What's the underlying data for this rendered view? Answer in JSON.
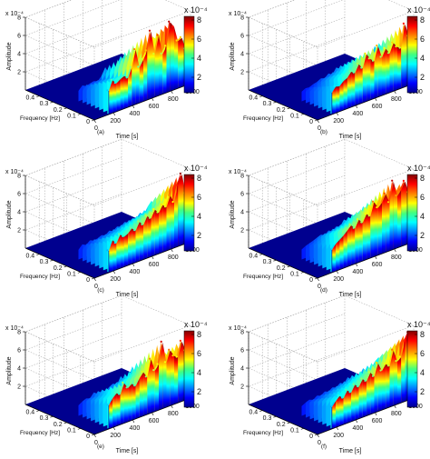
{
  "chart_data": [
    {
      "type": "surface",
      "panel_label": "(a)",
      "xlabel": "Time [s]",
      "ylabel": "Frequency [Hz]",
      "zlabel": "Amplitude",
      "z_exponent": "x 10⁻⁴",
      "colorbar": {
        "exponent": "x 10⁻⁴",
        "ticks": [
          "8",
          "6",
          "4",
          "2"
        ],
        "range": [
          0,
          8
        ]
      },
      "x_ticks": [
        "0",
        "200",
        "400",
        "600",
        "800",
        "1000"
      ],
      "x_range": [
        0,
        1000
      ],
      "y_ticks": [
        "0",
        "0.1",
        "0.2",
        "0.3",
        "0.4"
      ],
      "y_range": [
        0,
        0.5
      ],
      "z_ticks": [
        "8",
        "6",
        "4",
        "2"
      ],
      "z_range": [
        0,
        8
      ],
      "onset_time": 150,
      "profile_time": [
        150,
        190,
        230,
        270,
        310,
        350,
        390,
        430,
        470,
        510,
        550,
        590,
        630,
        670,
        710,
        750,
        790,
        830,
        870,
        910,
        950,
        990
      ],
      "profile_amplitude": [
        2.6,
        3.6,
        3.1,
        3.4,
        3.6,
        3.2,
        4.2,
        6.0,
        3.9,
        4.6,
        5.4,
        7.4,
        4.7,
        6.6,
        4.4,
        5.1,
        7.6,
        6.9,
        5.2,
        5.4,
        4.0,
        5.1
      ]
    },
    {
      "type": "surface",
      "panel_label": "(b)",
      "xlabel": "Time [s]",
      "ylabel": "Frequency [Hz]",
      "zlabel": "Amplitude",
      "z_exponent": "x 10⁻⁴",
      "colorbar": {
        "exponent": "x 10⁻⁴",
        "ticks": [
          "8",
          "6",
          "4",
          "2"
        ],
        "range": [
          0,
          8
        ]
      },
      "x_ticks": [
        "0",
        "200",
        "400",
        "600",
        "800",
        "1000"
      ],
      "x_range": [
        0,
        1000
      ],
      "y_ticks": [
        "0",
        "0.1",
        "0.2",
        "0.3",
        "0.4"
      ],
      "y_range": [
        0,
        0.5
      ],
      "z_ticks": [
        "8",
        "6",
        "4",
        "2"
      ],
      "z_range": [
        0,
        8
      ],
      "onset_time": 150,
      "profile_time": [
        150,
        190,
        230,
        270,
        310,
        350,
        390,
        430,
        470,
        510,
        550,
        590,
        630,
        670,
        710,
        750,
        790,
        830,
        870,
        910,
        950,
        990
      ],
      "profile_amplitude": [
        2.4,
        2.9,
        2.8,
        3.2,
        3.4,
        3.9,
        3.6,
        4.4,
        3.8,
        5.2,
        4.5,
        4.1,
        5.6,
        4.2,
        5.0,
        4.3,
        5.3,
        4.7,
        4.4,
        6.9,
        5.4,
        4.8
      ]
    },
    {
      "type": "surface",
      "panel_label": "(c)",
      "xlabel": "Time [s]",
      "ylabel": "Frequency [Hz]",
      "zlabel": "Amplitude",
      "z_exponent": "x 10⁻⁴",
      "colorbar": {
        "exponent": "x 10⁻⁴",
        "ticks": [
          "8",
          "6",
          "4",
          "2"
        ],
        "range": [
          0,
          8
        ]
      },
      "x_ticks": [
        "0",
        "200",
        "400",
        "600",
        "800",
        "1000"
      ],
      "x_range": [
        0,
        1000
      ],
      "y_ticks": [
        "0",
        "0.1",
        "0.2",
        "0.3",
        "0.4"
      ],
      "y_range": [
        0,
        0.5
      ],
      "z_ticks": [
        "8",
        "6",
        "4",
        "2"
      ],
      "z_range": [
        0,
        8
      ],
      "onset_time": 150,
      "profile_time": [
        150,
        190,
        230,
        270,
        310,
        350,
        390,
        430,
        470,
        510,
        550,
        590,
        630,
        670,
        710,
        750,
        790,
        830,
        870,
        910,
        950,
        990
      ],
      "profile_amplitude": [
        2.4,
        3.4,
        2.9,
        3.7,
        3.3,
        3.5,
        3.9,
        3.5,
        4.3,
        3.8,
        4.6,
        4.2,
        5.0,
        4.5,
        5.2,
        4.8,
        5.9,
        5.0,
        6.7,
        7.8,
        5.5,
        5.2
      ]
    },
    {
      "type": "surface",
      "panel_label": "(d)",
      "xlabel": "Time [s]",
      "ylabel": "Frequency [Hz]",
      "zlabel": "Amplitude",
      "z_exponent": "x 10⁻⁴",
      "colorbar": {
        "exponent": "x 10⁻⁴",
        "ticks": [
          "8",
          "6",
          "4",
          "2"
        ],
        "range": [
          0,
          8
        ]
      },
      "x_ticks": [
        "0",
        "200",
        "400",
        "600",
        "800",
        "1000"
      ],
      "x_range": [
        0,
        1000
      ],
      "y_ticks": [
        "0",
        "0.1",
        "0.2",
        "0.3",
        "0.4"
      ],
      "y_range": [
        0,
        0.5
      ],
      "z_ticks": [
        "8",
        "6",
        "4",
        "2"
      ],
      "z_range": [
        0,
        8
      ],
      "onset_time": 150,
      "profile_time": [
        150,
        190,
        230,
        270,
        310,
        350,
        390,
        430,
        470,
        510,
        550,
        590,
        630,
        670,
        710,
        750,
        790,
        830,
        870,
        910,
        950,
        990
      ],
      "profile_amplitude": [
        2.5,
        3.0,
        3.3,
        3.6,
        4.0,
        4.4,
        3.9,
        4.7,
        4.2,
        5.0,
        4.6,
        6.0,
        5.2,
        5.6,
        6.4,
        5.3,
        7.5,
        5.7,
        6.2,
        7.0,
        5.6,
        5.1
      ]
    },
    {
      "type": "surface",
      "panel_label": "(e)",
      "xlabel": "Time [s]",
      "ylabel": "Frequency [Hz]",
      "zlabel": "Amplitude",
      "z_exponent": "x 10⁻⁴",
      "colorbar": {
        "exponent": "x 10⁻⁴",
        "ticks": [
          "8",
          "6",
          "4",
          "2"
        ],
        "range": [
          0,
          8
        ]
      },
      "x_ticks": [
        "0",
        "200",
        "400",
        "600",
        "800",
        "1000"
      ],
      "x_range": [
        0,
        1000
      ],
      "y_ticks": [
        "0",
        "0.1",
        "0.2",
        "0.3",
        "0.4"
      ],
      "y_range": [
        0,
        0.5
      ],
      "z_ticks": [
        "8",
        "6",
        "4",
        "2"
      ],
      "z_range": [
        0,
        8
      ],
      "onset_time": 150,
      "profile_time": [
        150,
        190,
        230,
        270,
        310,
        350,
        390,
        430,
        470,
        510,
        550,
        590,
        630,
        670,
        710,
        750,
        790,
        830,
        870,
        910,
        950,
        990
      ],
      "profile_amplitude": [
        2.6,
        3.2,
        3.6,
        3.3,
        4.4,
        3.7,
        4.0,
        3.6,
        4.3,
        4.8,
        4.1,
        5.9,
        4.5,
        5.0,
        7.3,
        4.9,
        6.1,
        5.3,
        5.0,
        6.6,
        5.4,
        5.0
      ]
    },
    {
      "type": "surface",
      "panel_label": "(f)",
      "xlabel": "Time [s]",
      "ylabel": "Frequency [Hz]",
      "zlabel": "Amplitude",
      "z_exponent": "x 10⁻⁴",
      "colorbar": {
        "exponent": "x 10⁻⁴",
        "ticks": [
          "8",
          "6",
          "4",
          "2"
        ],
        "range": [
          0,
          8
        ]
      },
      "x_ticks": [
        "0",
        "200",
        "400",
        "600",
        "800",
        "1000"
      ],
      "x_range": [
        0,
        1000
      ],
      "y_ticks": [
        "0",
        "0.1",
        "0.2",
        "0.3",
        "0.4"
      ],
      "y_range": [
        0,
        0.5
      ],
      "z_ticks": [
        "8",
        "6",
        "4",
        "2"
      ],
      "z_range": [
        0,
        8
      ],
      "onset_time": 150,
      "profile_time": [
        150,
        190,
        230,
        270,
        310,
        350,
        390,
        430,
        470,
        510,
        550,
        590,
        630,
        670,
        710,
        750,
        790,
        830,
        870,
        910,
        950,
        990
      ],
      "profile_amplitude": [
        2.4,
        2.9,
        3.3,
        2.9,
        3.6,
        3.2,
        3.9,
        3.5,
        4.2,
        3.8,
        4.6,
        4.0,
        5.3,
        4.3,
        4.9,
        4.5,
        6.1,
        4.7,
        5.0,
        6.6,
        7.4,
        5.1
      ]
    }
  ]
}
